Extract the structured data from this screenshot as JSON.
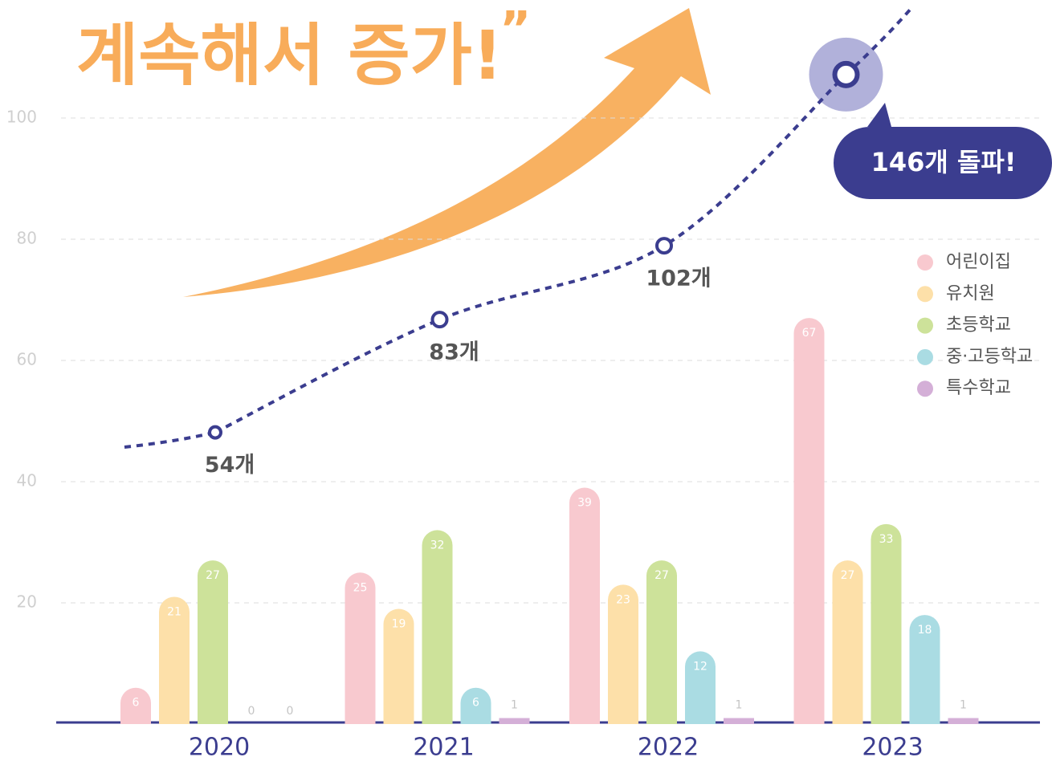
{
  "chart_data": {
    "type": "bar",
    "title": "계속해서 증가!",
    "title_quote": "”",
    "categories": [
      "2020",
      "2021",
      "2022",
      "2023"
    ],
    "series": [
      {
        "name": "어린이집",
        "color": "#f8c9cf",
        "values": [
          6,
          25,
          39,
          67
        ]
      },
      {
        "name": "유치원",
        "color": "#fde0a9",
        "values": [
          21,
          19,
          23,
          27
        ]
      },
      {
        "name": "초등학교",
        "color": "#cde29a",
        "values": [
          27,
          32,
          27,
          33
        ]
      },
      {
        "name": "중·고등학교",
        "color": "#aadce3",
        "values": [
          0,
          6,
          12,
          18
        ]
      },
      {
        "name": "특수학교",
        "color": "#d4afd7",
        "values": [
          0,
          1,
          1,
          1
        ]
      }
    ],
    "line": {
      "type": "line",
      "axis": "y2",
      "color": "#3b3d8f",
      "values": [
        54,
        83,
        102,
        146
      ],
      "value_labels": [
        "54개",
        "83개",
        "102개",
        "146개 돌파!"
      ]
    },
    "ylim": [
      0,
      120
    ],
    "yticks": [
      20,
      40,
      60,
      80,
      100
    ],
    "y2lim": [
      -21,
      166
    ],
    "grid": true,
    "legend": "right"
  }
}
